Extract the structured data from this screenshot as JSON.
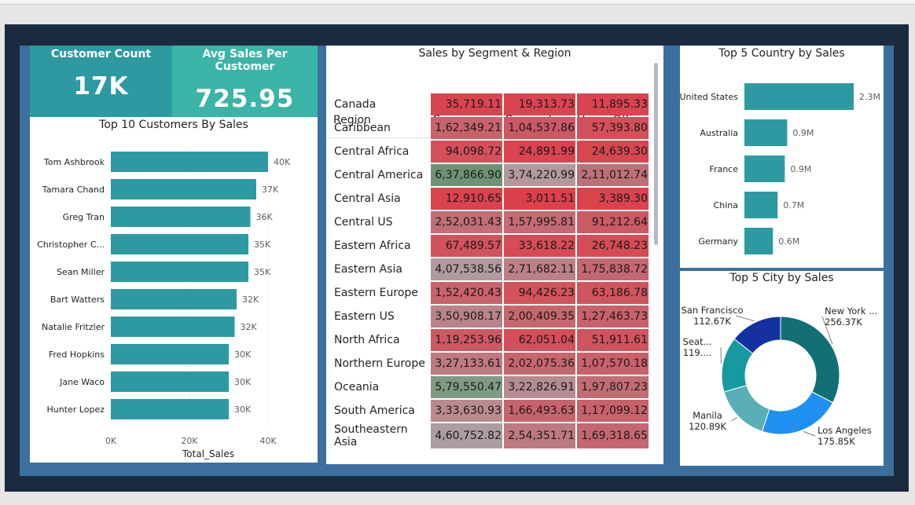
{
  "kpis": {
    "customer_count": {
      "label": "Customer Count",
      "value": "17K",
      "color": "#2d9aa2"
    },
    "avg_sales": {
      "label": "Avg Sales Per Customer",
      "value": "725.95",
      "color": "#3ab4a6"
    }
  },
  "top_customers": {
    "title": "Top 10 Customers By Sales",
    "xlabel": "Total_Sales",
    "ticks": [
      "0K",
      "20K",
      "40K"
    ],
    "bar_color": "#2d9aa2"
  },
  "matrix": {
    "title": "Sales by Segment & Region",
    "columns": [
      "Region",
      "Consumer",
      "Corporate",
      "Home Office"
    ],
    "rows": [
      {
        "region": "Canada",
        "consumer": "35,719.11",
        "corporate": "19,313.73",
        "home": "11,895.33"
      },
      {
        "region": "Caribbean",
        "consumer": "1,62,349.21",
        "corporate": "1,04,537.86",
        "home": "57,393.80"
      },
      {
        "region": "Central Africa",
        "consumer": "94,098.72",
        "corporate": "24,891.99",
        "home": "24,639.30"
      },
      {
        "region": "Central America",
        "consumer": "6,37,866.90",
        "corporate": "3,74,220.99",
        "home": "2,11,012.74"
      },
      {
        "region": "Central Asia",
        "consumer": "12,910.65",
        "corporate": "3,011.51",
        "home": "3,389.30"
      },
      {
        "region": "Central US",
        "consumer": "2,52,031.43",
        "corporate": "1,57,995.81",
        "home": "91,212.64"
      },
      {
        "region": "Eastern Africa",
        "consumer": "67,489.57",
        "corporate": "33,618.22",
        "home": "26,748.23"
      },
      {
        "region": "Eastern Asia",
        "consumer": "4,07,538.56",
        "corporate": "2,71,682.11",
        "home": "1,75,838.72"
      },
      {
        "region": "Eastern Europe",
        "consumer": "1,52,420.43",
        "corporate": "94,426.23",
        "home": "63,186.78"
      },
      {
        "region": "Eastern US",
        "consumer": "3,50,908.17",
        "corporate": "2,00,409.35",
        "home": "1,27,463.73"
      },
      {
        "region": "North Africa",
        "consumer": "1,19,253.96",
        "corporate": "62,051.04",
        "home": "51,911.61"
      },
      {
        "region": "Northern Europe",
        "consumer": "3,27,133.61",
        "corporate": "2,02,075.36",
        "home": "1,07,570.18"
      },
      {
        "region": "Oceania",
        "consumer": "5,79,550.47",
        "corporate": "3,22,826.91",
        "home": "1,97,807.23"
      },
      {
        "region": "South America",
        "consumer": "3,33,630.93",
        "corporate": "1,66,493.63",
        "home": "1,17,099.12"
      },
      {
        "region": "Southeastern Asia",
        "consumer": "4,60,752.82",
        "corporate": "2,54,351.71",
        "home": "1,69,318.65"
      }
    ]
  },
  "country_chart": {
    "title": "Top 5 Country by Sales",
    "bar_color": "#2d9aa2"
  },
  "city_chart": {
    "title": "Top 5 City by Sales"
  },
  "chart_data": [
    {
      "type": "bar",
      "title": "Top 10 Customers By Sales",
      "xlabel": "Total_Sales",
      "ylabel": "",
      "orientation": "horizontal",
      "xlim": [
        0,
        42000
      ],
      "categories": [
        "Tom Ashbrook",
        "Tamara Chand",
        "Greg Tran",
        "Christopher C...",
        "Sean Miller",
        "Bart Watters",
        "Natalie Fritzler",
        "Fred Hopkins",
        "Jane Waco",
        "Hunter Lopez"
      ],
      "values": [
        40000,
        37000,
        35500,
        35000,
        35000,
        32000,
        31500,
        30000,
        30000,
        30000
      ],
      "labels": [
        "40K",
        "37K",
        "36K",
        "35K",
        "35K",
        "32K",
        "32K",
        "30K",
        "30K",
        "30K"
      ]
    },
    {
      "type": "bar",
      "title": "Top 5 Country by Sales",
      "orientation": "horizontal",
      "categories": [
        "United States",
        "Australia",
        "France",
        "China",
        "Germany"
      ],
      "values": [
        2.3,
        0.9,
        0.85,
        0.7,
        0.6
      ],
      "labels": [
        "2.3M",
        "0.9M",
        "0.9M",
        "0.7M",
        "0.6M"
      ]
    },
    {
      "type": "pie",
      "title": "Top 5 City by Sales",
      "categories": [
        "New York ...",
        "Los Angeles",
        "Manila",
        "Seat...",
        "San Francisco"
      ],
      "values": [
        256.37,
        175.85,
        120.89,
        119,
        112.67
      ],
      "labels": [
        "256.37K",
        "175.85K",
        "120.89K",
        "119....",
        "112.67K"
      ],
      "colors": [
        "#117074",
        "#1f8ff2",
        "#5aaeb5",
        "#17999f",
        "#1530a0"
      ]
    }
  ]
}
